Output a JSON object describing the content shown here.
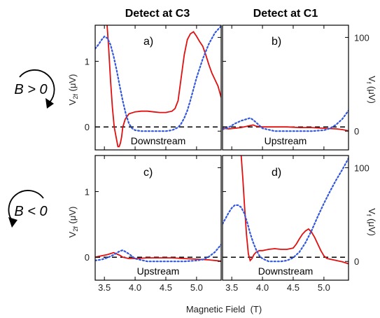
{
  "chart_data": {
    "type": "line",
    "column_titles": [
      "Detect at C3",
      "Detect at C1"
    ],
    "row_labels": [
      "B > 0",
      "B < 0"
    ],
    "xlabel": "Magnetic Field  (T)",
    "ylabel_left": "V_2f  (μV)",
    "ylabel_right": "V_f  (μV)",
    "xlim": [
      3.35,
      5.4
    ],
    "x_ticks": [
      3.5,
      4.0,
      4.5,
      5.0
    ],
    "x_tick_labels": [
      "3.5",
      "4.0",
      "4.5",
      "5.0"
    ],
    "ylim_left": [
      -0.35,
      1.55
    ],
    "y_ticks_left": [
      0,
      1
    ],
    "ylim_right": [
      -20,
      113
    ],
    "y_ticks_right": [
      0,
      100
    ],
    "grid": false,
    "zero_line": "dashed",
    "panels": [
      {
        "id": "a",
        "label": "a)",
        "region": "Downstream",
        "series": [
          {
            "axis": "left",
            "color": "#e01010",
            "style": "solid",
            "x": [
              3.54,
              3.57,
              3.6,
              3.63,
              3.66,
              3.7,
              3.72,
              3.74,
              3.76,
              3.78,
              3.8,
              3.84,
              3.9,
              4.0,
              4.1,
              4.2,
              4.3,
              4.4,
              4.5,
              4.6,
              4.65,
              4.7,
              4.75,
              4.8,
              4.85,
              4.9,
              4.95,
              5.0,
              5.05,
              5.1,
              5.15,
              5.2,
              5.25,
              5.3,
              5.35,
              5.4
            ],
            "y": [
              1.6,
              1.2,
              0.7,
              0.3,
              0.0,
              -0.2,
              -0.3,
              -0.3,
              -0.25,
              -0.15,
              0.0,
              0.12,
              0.2,
              0.23,
              0.24,
              0.24,
              0.23,
              0.22,
              0.22,
              0.24,
              0.28,
              0.4,
              0.75,
              1.1,
              1.33,
              1.42,
              1.45,
              1.38,
              1.3,
              1.23,
              1.1,
              0.95,
              0.82,
              0.72,
              0.62,
              0.45
            ]
          },
          {
            "axis": "right",
            "color": "#3358dd",
            "style": "dotted",
            "x": [
              3.35,
              3.4,
              3.45,
              3.5,
              3.55,
              3.6,
              3.65,
              3.7,
              3.75,
              3.8,
              3.85,
              3.9,
              3.95,
              4.0,
              4.1,
              4.2,
              4.3,
              4.4,
              4.5,
              4.6,
              4.7,
              4.75,
              4.8,
              4.85,
              4.9,
              4.95,
              5.0,
              5.1,
              5.2,
              5.3,
              5.4
            ],
            "y": [
              88,
              92,
              97,
              101,
              99,
              92,
              80,
              65,
              48,
              32,
              18,
              8,
              3,
              1,
              0,
              0,
              0,
              0,
              0,
              1,
              4,
              8,
              14,
              22,
              33,
              45,
              57,
              77,
              93,
              105,
              112
            ]
          }
        ]
      },
      {
        "id": "b",
        "label": "b)",
        "region": "Upstream",
        "series": [
          {
            "axis": "left",
            "color": "#e01010",
            "style": "solid",
            "x": [
              3.35,
              3.45,
              3.55,
              3.65,
              3.75,
              3.8,
              3.85,
              3.9,
              4.0,
              4.2,
              4.4,
              4.6,
              4.8,
              5.0,
              5.2,
              5.3,
              5.4
            ],
            "y": [
              -0.02,
              -0.03,
              -0.02,
              -0.01,
              0.01,
              0.02,
              0.03,
              0.01,
              0.0,
              0.0,
              0.0,
              -0.01,
              -0.01,
              -0.02,
              -0.03,
              -0.04,
              -0.06
            ]
          },
          {
            "axis": "right",
            "color": "#3358dd",
            "style": "dotted",
            "x": [
              3.35,
              3.45,
              3.55,
              3.65,
              3.75,
              3.8,
              3.85,
              3.9,
              4.0,
              4.2,
              4.4,
              4.6,
              4.8,
              5.0,
              5.1,
              5.2,
              5.3,
              5.4
            ],
            "y": [
              2,
              4,
              8,
              11,
              13,
              14,
              12,
              9,
              3,
              0,
              0,
              0,
              0,
              1,
              3,
              7,
              13,
              22
            ]
          }
        ]
      },
      {
        "id": "c",
        "label": "c)",
        "region": "Upstream",
        "series": [
          {
            "axis": "left",
            "color": "#e01010",
            "style": "solid",
            "x": [
              3.35,
              3.45,
              3.55,
              3.65,
              3.7,
              3.75,
              3.8,
              3.9,
              4.0,
              4.2,
              4.4,
              4.6,
              4.8,
              5.0,
              5.2,
              5.4
            ],
            "y": [
              0.0,
              0.02,
              0.04,
              0.07,
              0.05,
              0.03,
              0.0,
              -0.02,
              -0.02,
              -0.01,
              -0.01,
              -0.01,
              -0.02,
              -0.03,
              -0.04,
              -0.06
            ]
          },
          {
            "axis": "right",
            "color": "#3358dd",
            "style": "dotted",
            "x": [
              3.35,
              3.45,
              3.55,
              3.65,
              3.7,
              3.75,
              3.8,
              3.85,
              3.9,
              4.0,
              4.2,
              4.4,
              4.6,
              4.8,
              5.0,
              5.1,
              5.2,
              5.3,
              5.4
            ],
            "y": [
              1,
              2,
              4,
              7,
              9,
              11,
              12,
              10,
              8,
              3,
              0,
              0,
              0,
              0,
              1,
              2,
              5,
              10,
              18
            ]
          }
        ]
      },
      {
        "id": "d",
        "label": "d)",
        "region": "Downstream",
        "series": [
          {
            "axis": "left",
            "color": "#e01010",
            "style": "solid",
            "x": [
              3.65,
              3.68,
              3.71,
              3.74,
              3.77,
              3.8,
              3.83,
              3.86,
              3.9,
              3.95,
              4.0,
              4.1,
              4.2,
              4.3,
              4.4,
              4.5,
              4.55,
              4.6,
              4.65,
              4.7,
              4.75,
              4.8,
              4.85,
              4.9,
              4.95,
              5.0,
              5.05,
              5.1,
              5.2,
              5.3,
              5.4
            ],
            "y": [
              1.6,
              1.2,
              0.75,
              0.35,
              0.05,
              -0.05,
              -0.02,
              0.04,
              0.08,
              0.1,
              0.1,
              0.12,
              0.13,
              0.12,
              0.12,
              0.14,
              0.2,
              0.28,
              0.35,
              0.4,
              0.43,
              0.38,
              0.3,
              0.2,
              0.1,
              0.02,
              -0.02,
              -0.03,
              -0.05,
              -0.07,
              -0.1
            ]
          },
          {
            "axis": "right",
            "color": "#3358dd",
            "style": "dotted",
            "x": [
              3.35,
              3.4,
              3.45,
              3.5,
              3.55,
              3.6,
              3.65,
              3.7,
              3.75,
              3.8,
              3.85,
              3.9,
              3.95,
              4.0,
              4.1,
              4.2,
              4.3,
              4.4,
              4.5,
              4.6,
              4.7,
              4.8,
              4.9,
              5.0,
              5.1,
              5.2,
              5.3,
              5.4
            ],
            "y": [
              40,
              46,
              52,
              57,
              60,
              60,
              58,
              52,
              42,
              30,
              20,
              12,
              6,
              3,
              0,
              0,
              0,
              1,
              4,
              10,
              20,
              33,
              48,
              62,
              75,
              87,
              98,
              110
            ]
          }
        ]
      }
    ]
  }
}
